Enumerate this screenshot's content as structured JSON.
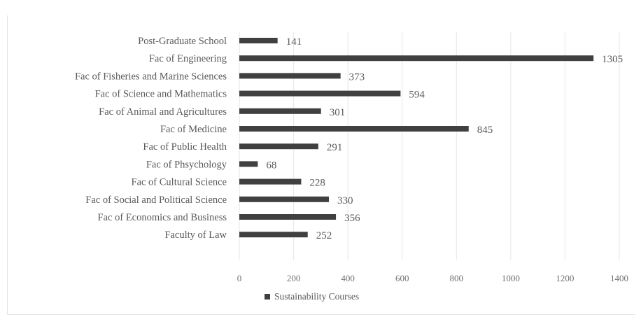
{
  "chart_data": {
    "type": "bar",
    "orientation": "horizontal",
    "categories": [
      "Post-Graduate School",
      "Fac of Engineering",
      "Fac of Fisheries and Marine Sciences",
      "Fac of Science and Mathematics",
      "Fac of Animal and Agricultures",
      "Fac of Medicine",
      "Fac of Public Health",
      "Fac of Phsychology",
      "Fac of Cultural Science",
      "Fac of Social and Political Science",
      "Fac of Economics and Business",
      "Faculty of Law"
    ],
    "series": [
      {
        "name": "Sustainability Courses",
        "values": [
          141,
          1305,
          373,
          594,
          301,
          845,
          291,
          68,
          228,
          330,
          356,
          252
        ],
        "color": "#404040"
      }
    ],
    "xlim": [
      0,
      1400
    ],
    "xticks": [
      0,
      200,
      400,
      600,
      800,
      1000,
      1200,
      1400
    ],
    "grid": true,
    "legend_position": "bottom",
    "data_labels": true
  }
}
